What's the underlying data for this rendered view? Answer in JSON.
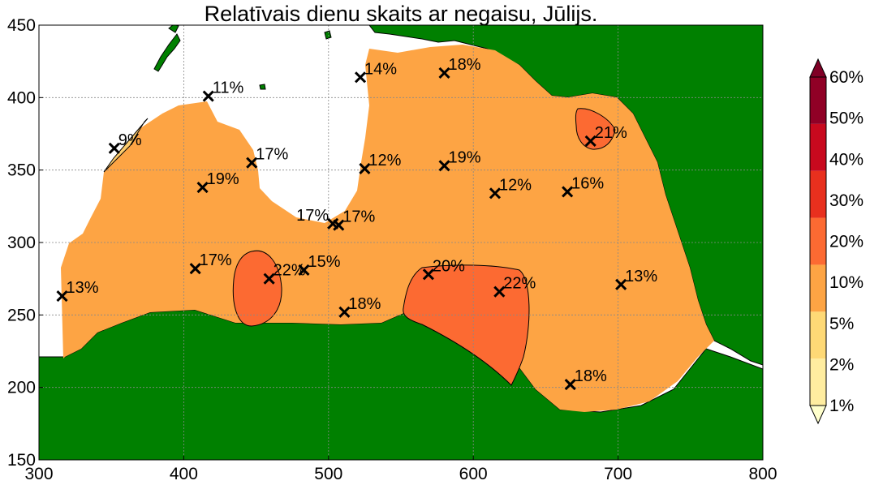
{
  "title": "Relatīvais dienu skaits ar negaisu, Jūlijs.",
  "axes": {
    "x_ticks": [
      "300",
      "400",
      "500",
      "600",
      "700",
      "800"
    ],
    "y_ticks": [
      "450",
      "400",
      "350",
      "300",
      "250",
      "200",
      "150"
    ],
    "x_range": [
      300,
      800
    ],
    "y_range": [
      150,
      450
    ]
  },
  "colors": {
    "sea": "#ffffff",
    "foreign_land": "#008000",
    "band_5_10": "#fdcd6e",
    "band_10_20": "#fda444",
    "band_20_30": "#fc6a32"
  },
  "colorbar": {
    "labels": [
      "60%",
      "50%",
      "40%",
      "30%",
      "20%",
      "10%",
      "5%",
      "2%",
      "1%"
    ],
    "colors": [
      "#ffffcc",
      "#ffeda0",
      "#fed976",
      "#fda444",
      "#fc6a32",
      "#e8301e",
      "#c8091e",
      "#900026",
      "#800026"
    ]
  },
  "stations": [
    {
      "x": 316,
      "y": 263,
      "label": "13%"
    },
    {
      "x": 352,
      "y": 365,
      "label": "9%"
    },
    {
      "x": 413,
      "y": 338,
      "label": "19%"
    },
    {
      "x": 417,
      "y": 401,
      "label": "11%"
    },
    {
      "x": 408,
      "y": 282,
      "label": "17%"
    },
    {
      "x": 447,
      "y": 355,
      "label": "17%"
    },
    {
      "x": 459,
      "y": 275,
      "label": "22%"
    },
    {
      "x": 483,
      "y": 281,
      "label": "15%"
    },
    {
      "x": 503,
      "y": 313,
      "label": "17%"
    },
    {
      "x": 507,
      "y": 312,
      "label": "17%"
    },
    {
      "x": 511,
      "y": 252,
      "label": "18%"
    },
    {
      "x": 522,
      "y": 414,
      "label": "14%"
    },
    {
      "x": 525,
      "y": 351,
      "label": "12%"
    },
    {
      "x": 569,
      "y": 278,
      "label": "20%"
    },
    {
      "x": 580,
      "y": 417,
      "label": "18%"
    },
    {
      "x": 580,
      "y": 353,
      "label": "19%"
    },
    {
      "x": 615,
      "y": 334,
      "label": "12%"
    },
    {
      "x": 618,
      "y": 266,
      "label": "22%"
    },
    {
      "x": 665,
      "y": 335,
      "label": "16%"
    },
    {
      "x": 667,
      "y": 202,
      "label": "18%"
    },
    {
      "x": 681,
      "y": 370,
      "label": "21%"
    },
    {
      "x": 702,
      "y": 271,
      "label": "13%"
    }
  ]
}
